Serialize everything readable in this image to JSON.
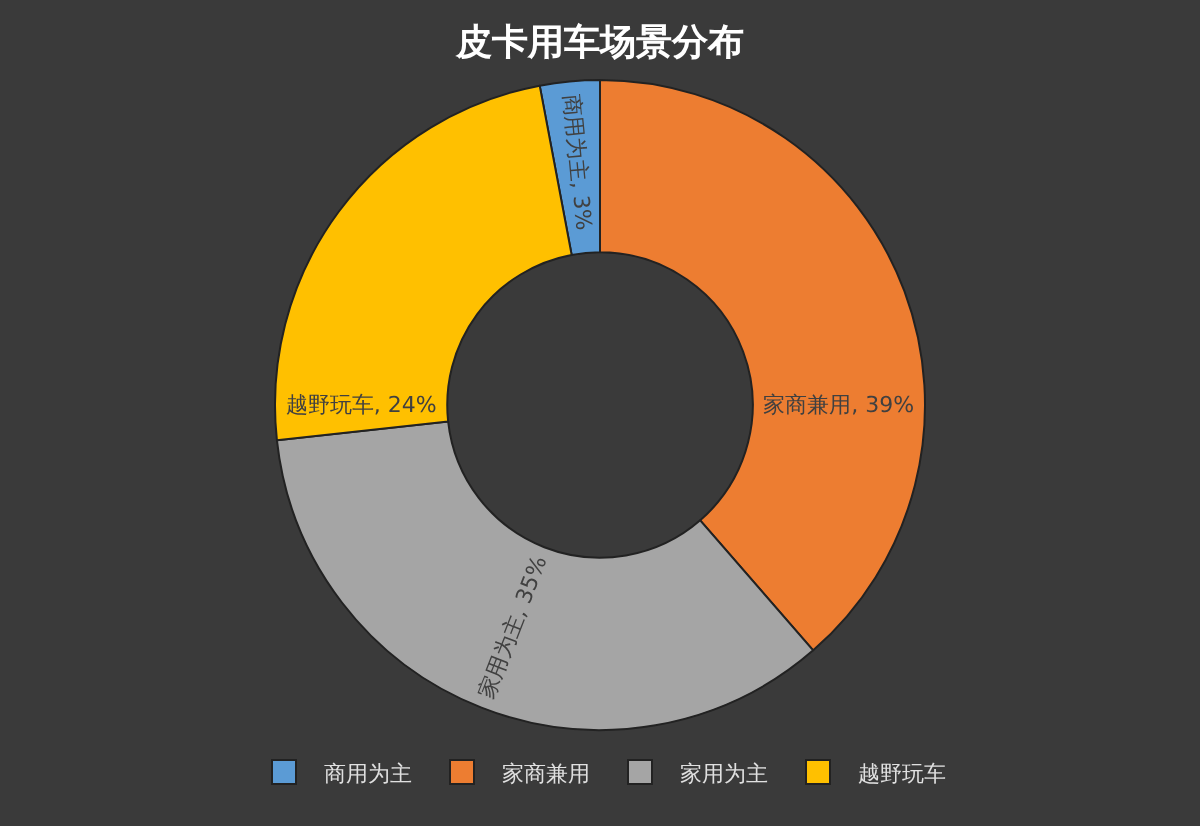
{
  "chart_data": {
    "type": "donut",
    "title": "皮卡用车场景分布",
    "categories": [
      "商用为主",
      "家商兼用",
      "家用为主",
      "越野玩车"
    ],
    "values": [
      3,
      39,
      35,
      24
    ],
    "colors": [
      "#5b9bd5",
      "#ed7d31",
      "#a5a5a5",
      "#ffc000"
    ],
    "value_labels": [
      "商用为主, 3%",
      "家商兼用, 39%",
      "家用为主, 35%",
      "越野玩车, 24%"
    ],
    "legend": "bottom"
  }
}
